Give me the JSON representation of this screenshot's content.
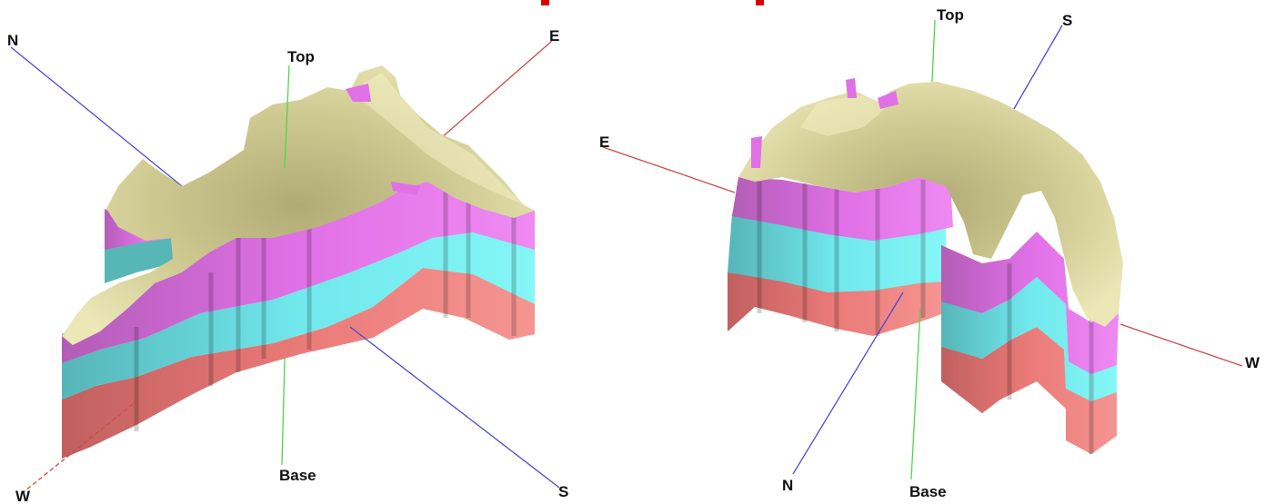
{
  "colors": {
    "surface": "#e4e0a6",
    "surface_shadow": "#b5b07a",
    "layer_1": "#e070e6",
    "layer_1_dark": "#b25db6",
    "layer_2": "#70f0f2",
    "layer_2_dark": "#56b5b8",
    "layer_3": "#f08684",
    "layer_3_dark": "#c16060",
    "axis_ns": "#4a4ad4",
    "axis_ew": "#cc4a4a",
    "axis_vertical": "#4fd64f",
    "title_marks": "#dd0000"
  },
  "views": [
    {
      "labels": {
        "north": "N",
        "east": "E",
        "top": "Top",
        "base": "Base",
        "south": "S",
        "west": "W"
      }
    },
    {
      "labels": {
        "top": "Top",
        "south": "S",
        "east": "E",
        "west": "W",
        "north": "N",
        "base": "Base"
      }
    }
  ]
}
